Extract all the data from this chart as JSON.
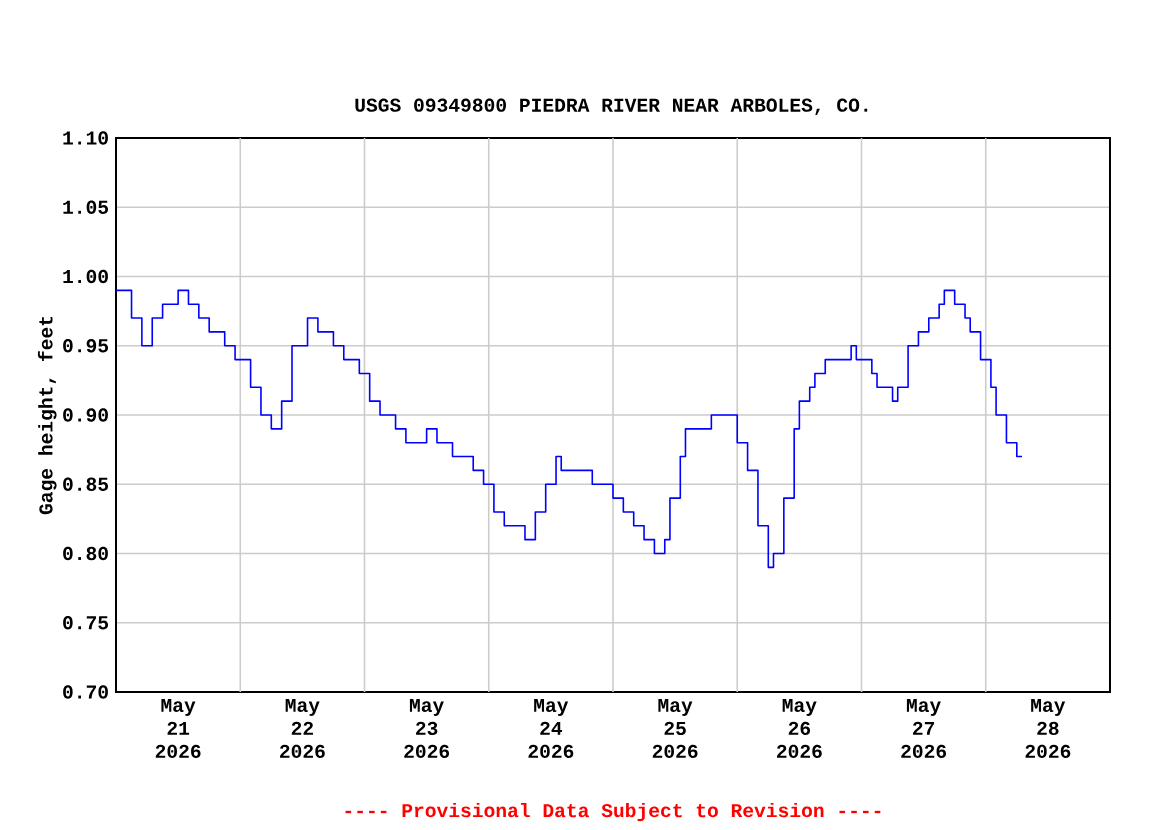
{
  "chart_data": {
    "type": "step",
    "title": "USGS 09349800 PIEDRA RIVER NEAR ARBOLES, CO.",
    "ylabel": "Gage height, feet",
    "annotations": [
      "---- Provisional Data Subject to Revision ----"
    ],
    "x": [
      "2026-05-21T00:00",
      "2026-05-21T01:00",
      "2026-05-21T03:00",
      "2026-05-21T05:00",
      "2026-05-21T06:00",
      "2026-05-21T07:00",
      "2026-05-21T09:00",
      "2026-05-21T12:00",
      "2026-05-21T14:00",
      "2026-05-21T16:00",
      "2026-05-21T18:00",
      "2026-05-21T21:00",
      "2026-05-21T23:00",
      "2026-05-22T02:00",
      "2026-05-22T04:00",
      "2026-05-22T06:00",
      "2026-05-22T08:00",
      "2026-05-22T10:00",
      "2026-05-22T13:00",
      "2026-05-22T15:00",
      "2026-05-22T18:00",
      "2026-05-22T20:00",
      "2026-05-22T23:00",
      "2026-05-23T01:00",
      "2026-05-23T03:00",
      "2026-05-23T06:00",
      "2026-05-23T08:00",
      "2026-05-23T11:00",
      "2026-05-23T12:00",
      "2026-05-23T14:00",
      "2026-05-23T17:00",
      "2026-05-23T21:00",
      "2026-05-23T23:00",
      "2026-05-24T01:00",
      "2026-05-24T03:00",
      "2026-05-24T06:00",
      "2026-05-24T07:00",
      "2026-05-24T09:00",
      "2026-05-24T11:00",
      "2026-05-24T13:00",
      "2026-05-24T14:00",
      "2026-05-24T18:00",
      "2026-05-24T20:00",
      "2026-05-25T00:00",
      "2026-05-25T02:00",
      "2026-05-25T04:00",
      "2026-05-25T06:00",
      "2026-05-25T08:00",
      "2026-05-25T10:00",
      "2026-05-25T11:00",
      "2026-05-25T13:00",
      "2026-05-25T14:00",
      "2026-05-25T17:00",
      "2026-05-25T19:00",
      "2026-05-25T22:00",
      "2026-05-26T00:00",
      "2026-05-26T02:00",
      "2026-05-26T04:00",
      "2026-05-26T06:00",
      "2026-05-26T07:00",
      "2026-05-26T09:00",
      "2026-05-26T11:00",
      "2026-05-26T12:00",
      "2026-05-26T14:00",
      "2026-05-26T15:00",
      "2026-05-26T17:00",
      "2026-05-26T21:00",
      "2026-05-26T22:00",
      "2026-05-26T23:00",
      "2026-05-27T02:00",
      "2026-05-27T03:00",
      "2026-05-27T06:00",
      "2026-05-27T07:00",
      "2026-05-27T09:00",
      "2026-05-27T11:00",
      "2026-05-27T13:00",
      "2026-05-27T15:00",
      "2026-05-27T16:00",
      "2026-05-27T18:00",
      "2026-05-27T20:00",
      "2026-05-27T21:00",
      "2026-05-27T23:00",
      "2026-05-28T01:00",
      "2026-05-28T02:00",
      "2026-05-28T04:00",
      "2026-05-28T06:00",
      "2026-05-28T07:00"
    ],
    "series": [
      {
        "color": "#0000ff",
        "values": [
          0.99,
          0.99,
          0.97,
          0.95,
          0.95,
          0.97,
          0.98,
          0.99,
          0.98,
          0.97,
          0.96,
          0.95,
          0.94,
          0.92,
          0.9,
          0.89,
          0.91,
          0.95,
          0.97,
          0.96,
          0.95,
          0.94,
          0.93,
          0.91,
          0.9,
          0.89,
          0.88,
          0.88,
          0.89,
          0.88,
          0.87,
          0.86,
          0.85,
          0.83,
          0.82,
          0.82,
          0.81,
          0.83,
          0.85,
          0.87,
          0.86,
          0.86,
          0.85,
          0.84,
          0.83,
          0.82,
          0.81,
          0.8,
          0.81,
          0.84,
          0.87,
          0.89,
          0.89,
          0.9,
          0.9,
          0.88,
          0.86,
          0.82,
          0.79,
          0.8,
          0.84,
          0.89,
          0.91,
          0.92,
          0.93,
          0.94,
          0.94,
          0.95,
          0.94,
          0.93,
          0.92,
          0.91,
          0.92,
          0.95,
          0.96,
          0.97,
          0.98,
          0.99,
          0.98,
          0.97,
          0.96,
          0.94,
          0.92,
          0.9,
          0.88,
          0.87,
          0.87
        ]
      }
    ],
    "xlim": [
      "2026-05-21T00:00",
      "2026-05-29T00:00"
    ],
    "xticks": [
      {
        "value": "2026-05-21T12:00",
        "label": "May 21 2026"
      },
      {
        "value": "2026-05-22T12:00",
        "label": "May 22 2026"
      },
      {
        "value": "2026-05-23T12:00",
        "label": "May 23 2026"
      },
      {
        "value": "2026-05-24T12:00",
        "label": "May 24 2026"
      },
      {
        "value": "2026-05-25T12:00",
        "label": "May 25 2026"
      },
      {
        "value": "2026-05-26T12:00",
        "label": "May 26 2026"
      },
      {
        "value": "2026-05-27T12:00",
        "label": "May 27 2026"
      },
      {
        "value": "2026-05-28T12:00",
        "label": "May 28 2026"
      },
      {
        "value": "2026-05-22T00:00",
        "label": null
      },
      {
        "value": "2026-05-23T00:00",
        "label": null
      },
      {
        "value": "2026-05-24T00:00",
        "label": null
      },
      {
        "value": "2026-05-25T00:00",
        "label": null
      },
      {
        "value": "2026-05-26T00:00",
        "label": null
      },
      {
        "value": "2026-05-27T00:00",
        "label": null
      },
      {
        "value": "2026-05-28T00:00",
        "label": null
      }
    ],
    "ylim": [
      0.7,
      1.1
    ],
    "yticks": [
      {
        "value": 0.7,
        "label": "0.70"
      },
      0.75,
      {
        "value": 0.8,
        "label": "0.80"
      },
      0.85,
      {
        "value": 0.9,
        "label": "0.90"
      },
      0.95,
      {
        "value": 1.0,
        "label": "1.00"
      },
      1.05,
      {
        "value": 1.1,
        "label": "1.10"
      }
    ],
    "grid": true,
    "marker": "none",
    "line_style": "solid"
  }
}
